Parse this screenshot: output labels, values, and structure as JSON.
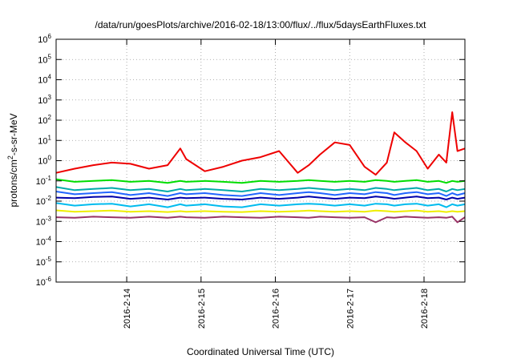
{
  "chart_data": {
    "type": "line",
    "title": "/data/run/goesPlots/archive/2016-02-18/13:00/flux/../flux/5daysEarthFluxes.txt",
    "xlabel": "Coordinated Universal Time (UTC)",
    "ylabel_parts": {
      "base": "protons/cm",
      "sup": "2",
      "rest": "-s-sr-MeV"
    },
    "y_scale": "log",
    "ylim": [
      1e-06,
      1000000.0
    ],
    "y_ticks": [
      {
        "value": 1e-06,
        "base": "10",
        "exp": "-6"
      },
      {
        "value": 1e-05,
        "base": "10",
        "exp": "-5"
      },
      {
        "value": 0.0001,
        "base": "10",
        "exp": "-4"
      },
      {
        "value": 0.001,
        "base": "10",
        "exp": "-3"
      },
      {
        "value": 0.01,
        "base": "10",
        "exp": "-2"
      },
      {
        "value": 0.1,
        "base": "10",
        "exp": "-1"
      },
      {
        "value": 1,
        "base": "10",
        "exp": "0"
      },
      {
        "value": 10,
        "base": "10",
        "exp": "1"
      },
      {
        "value": 100,
        "base": "10",
        "exp": "2"
      },
      {
        "value": 1000,
        "base": "10",
        "exp": "3"
      },
      {
        "value": 10000,
        "base": "10",
        "exp": "4"
      },
      {
        "value": 100000,
        "base": "10",
        "exp": "5"
      },
      {
        "value": 1000000,
        "base": "10",
        "exp": "6"
      }
    ],
    "xlim": [
      13.05,
      18.55
    ],
    "x_ticks": [
      {
        "value": 14,
        "label": "2016-2-14"
      },
      {
        "value": 15,
        "label": "2016-2-15"
      },
      {
        "value": 16,
        "label": "2016-2-16"
      },
      {
        "value": 17,
        "label": "2016-2-17"
      },
      {
        "value": 18,
        "label": "2016-2-18"
      }
    ],
    "grid": true,
    "x": [
      13.05,
      13.3,
      13.55,
      13.8,
      14.05,
      14.3,
      14.55,
      14.72,
      14.8,
      15.05,
      15.3,
      15.55,
      15.8,
      16.05,
      16.3,
      16.45,
      16.6,
      16.8,
      17.0,
      17.2,
      17.35,
      17.5,
      17.6,
      17.75,
      17.9,
      18.05,
      18.2,
      18.3,
      18.38,
      18.45,
      18.55
    ],
    "series": [
      {
        "color": "#ee0000",
        "width": 2,
        "values": [
          0.25,
          0.4,
          0.6,
          0.8,
          0.7,
          0.4,
          0.6,
          4,
          1.2,
          0.3,
          0.5,
          1.0,
          1.5,
          3,
          0.25,
          0.6,
          2,
          8,
          6,
          0.5,
          0.2,
          0.8,
          25,
          8,
          3,
          0.4,
          2,
          0.8,
          250,
          3,
          4
        ]
      },
      {
        "color": "#00dd00",
        "width": 2,
        "values": [
          0.12,
          0.09,
          0.1,
          0.11,
          0.09,
          0.1,
          0.08,
          0.1,
          0.09,
          0.1,
          0.09,
          0.08,
          0.1,
          0.09,
          0.1,
          0.11,
          0.1,
          0.09,
          0.1,
          0.09,
          0.11,
          0.1,
          0.09,
          0.1,
          0.11,
          0.09,
          0.1,
          0.08,
          0.1,
          0.09,
          0.1
        ]
      },
      {
        "color": "#00aaaa",
        "width": 2,
        "values": [
          0.05,
          0.035,
          0.04,
          0.045,
          0.035,
          0.04,
          0.03,
          0.04,
          0.035,
          0.04,
          0.035,
          0.03,
          0.04,
          0.035,
          0.04,
          0.045,
          0.04,
          0.035,
          0.04,
          0.035,
          0.045,
          0.04,
          0.035,
          0.04,
          0.045,
          0.035,
          0.04,
          0.03,
          0.04,
          0.035,
          0.04
        ]
      },
      {
        "color": "#2266ff",
        "width": 2,
        "values": [
          0.03,
          0.022,
          0.025,
          0.028,
          0.02,
          0.025,
          0.018,
          0.025,
          0.022,
          0.025,
          0.02,
          0.018,
          0.025,
          0.02,
          0.025,
          0.028,
          0.025,
          0.02,
          0.025,
          0.022,
          0.028,
          0.025,
          0.02,
          0.025,
          0.028,
          0.022,
          0.025,
          0.018,
          0.025,
          0.02,
          0.025
        ]
      },
      {
        "color": "#0000aa",
        "width": 2,
        "values": [
          0.015,
          0.014,
          0.016,
          0.017,
          0.013,
          0.015,
          0.012,
          0.015,
          0.014,
          0.015,
          0.013,
          0.012,
          0.015,
          0.013,
          0.015,
          0.017,
          0.015,
          0.013,
          0.015,
          0.014,
          0.017,
          0.015,
          0.013,
          0.015,
          0.017,
          0.014,
          0.015,
          0.012,
          0.015,
          0.013,
          0.015
        ]
      },
      {
        "color": "#00bbee",
        "width": 2,
        "values": [
          0.008,
          0.006,
          0.007,
          0.0075,
          0.0055,
          0.007,
          0.005,
          0.007,
          0.006,
          0.007,
          0.0055,
          0.005,
          0.007,
          0.006,
          0.007,
          0.0075,
          0.007,
          0.006,
          0.007,
          0.006,
          0.0075,
          0.007,
          0.006,
          0.007,
          0.0075,
          0.006,
          0.007,
          0.005,
          0.007,
          0.006,
          0.007
        ]
      },
      {
        "color": "#eeee00",
        "width": 2,
        "values": [
          0.0035,
          0.003,
          0.0032,
          0.0034,
          0.003,
          0.0032,
          0.0029,
          0.0032,
          0.003,
          0.0032,
          0.003,
          0.0029,
          0.0032,
          0.003,
          0.0032,
          0.0034,
          0.0032,
          0.003,
          0.0032,
          0.003,
          0.0034,
          0.0032,
          0.003,
          0.0032,
          0.0034,
          0.003,
          0.0032,
          0.0029,
          0.0032,
          0.003,
          0.0032
        ]
      },
      {
        "color": "#993366",
        "width": 2,
        "values": [
          0.0016,
          0.0015,
          0.0017,
          0.0016,
          0.0015,
          0.0017,
          0.0015,
          0.0017,
          0.0016,
          0.0015,
          0.0017,
          0.0016,
          0.0015,
          0.0017,
          0.0016,
          0.0015,
          0.0017,
          0.0016,
          0.0015,
          0.0016,
          0.0009,
          0.0016,
          0.0015,
          0.0017,
          0.0016,
          0.0015,
          0.0016,
          0.0015,
          0.0017,
          0.0009,
          0.0016
        ]
      }
    ]
  }
}
